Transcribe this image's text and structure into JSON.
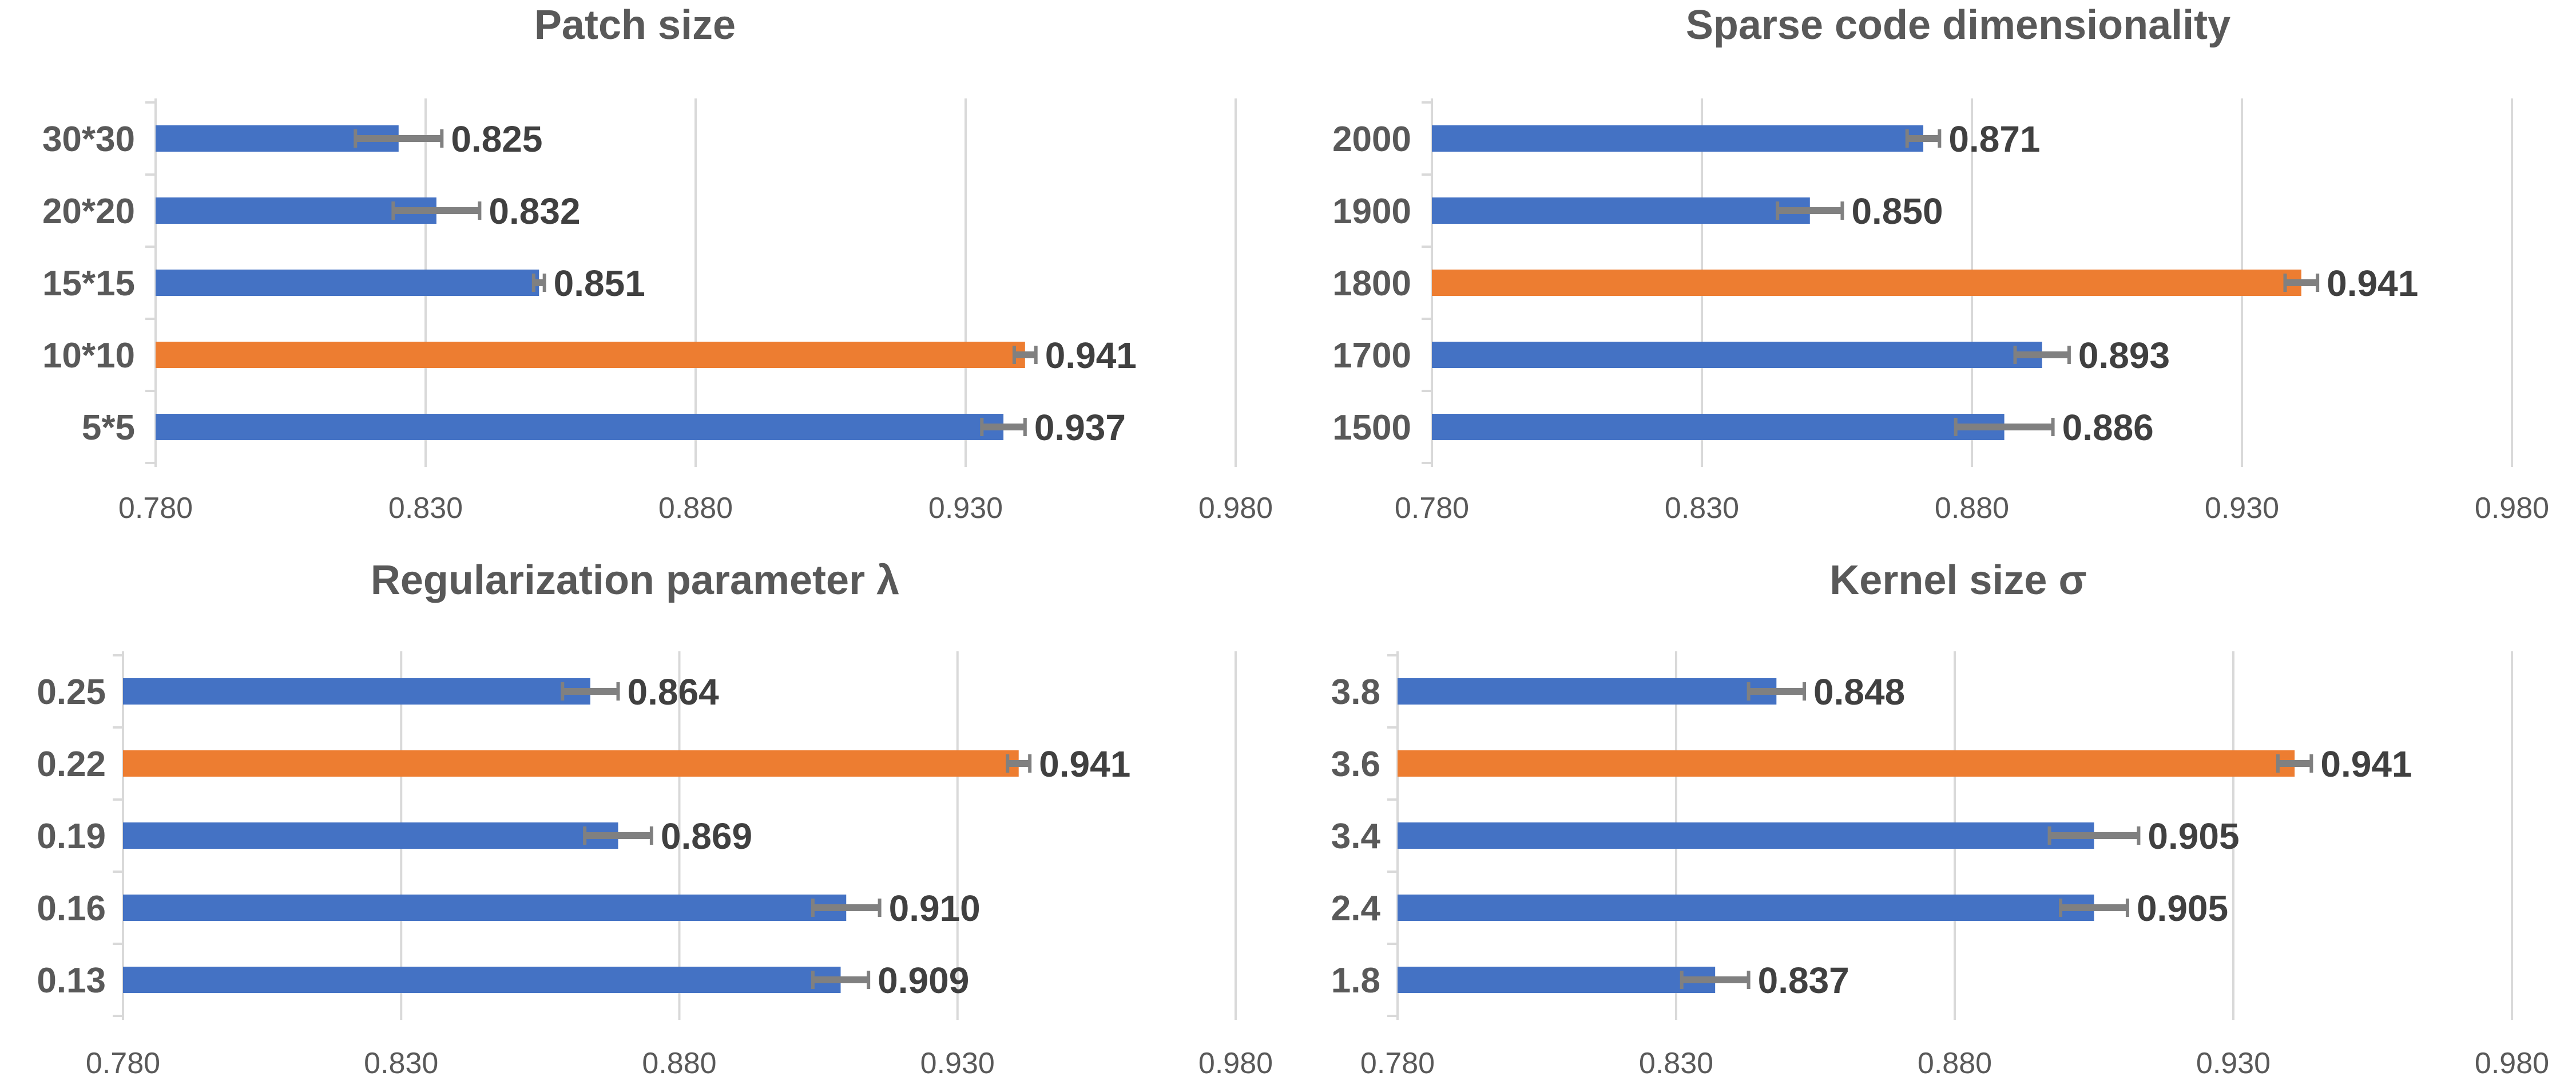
{
  "colors": {
    "bar": "#4472c4",
    "highlight": "#ed7d31",
    "errorbar": "#808080",
    "grid": "#d9d9d9",
    "text": "#595959",
    "label": "#404040"
  },
  "chart_data": [
    {
      "type": "bar",
      "orientation": "horizontal",
      "title": "Patch size",
      "categories": [
        "30*30",
        "20*20",
        "15*15",
        "10*10",
        "5*5"
      ],
      "values": [
        0.825,
        0.832,
        0.851,
        0.941,
        0.937
      ],
      "labels": [
        "0.825",
        "0.832",
        "0.851",
        "0.941",
        "0.937"
      ],
      "errors": [
        0.008,
        0.008,
        0.001,
        0.002,
        0.004
      ],
      "highlight_index": 3,
      "xlim": [
        0.78,
        0.98
      ],
      "xticks": [
        "0.780",
        "0.830",
        "0.880",
        "0.930",
        "0.980"
      ]
    },
    {
      "type": "bar",
      "orientation": "horizontal",
      "title": "Sparse code dimensionality",
      "categories": [
        "2000",
        "1900",
        "1800",
        "1700",
        "1500"
      ],
      "values": [
        0.871,
        0.85,
        0.941,
        0.893,
        0.886
      ],
      "labels": [
        "0.871",
        "0.850",
        "0.941",
        "0.893",
        "0.886"
      ],
      "errors": [
        0.003,
        0.006,
        0.003,
        0.005,
        0.009
      ],
      "highlight_index": 2,
      "xlim": [
        0.78,
        0.98
      ],
      "xticks": [
        "0.780",
        "0.830",
        "0.880",
        "0.930",
        "0.980"
      ]
    },
    {
      "type": "bar",
      "orientation": "horizontal",
      "title": "Regularization parameter λ",
      "categories": [
        "0.25",
        "0.22",
        "0.19",
        "0.16",
        "0.13"
      ],
      "values": [
        0.864,
        0.941,
        0.869,
        0.91,
        0.909
      ],
      "labels": [
        "0.864",
        "0.941",
        "0.869",
        "0.910",
        "0.909"
      ],
      "errors": [
        0.005,
        0.002,
        0.006,
        0.006,
        0.005
      ],
      "highlight_index": 1,
      "xlim": [
        0.78,
        0.98
      ],
      "xticks": [
        "0.780",
        "0.830",
        "0.880",
        "0.930",
        "0.980"
      ]
    },
    {
      "type": "bar",
      "orientation": "horizontal",
      "title": "Kernel size σ",
      "categories": [
        "3.8",
        "3.6",
        "3.4",
        "2.4",
        "1.8"
      ],
      "values": [
        0.848,
        0.941,
        0.905,
        0.905,
        0.837
      ],
      "labels": [
        "0.848",
        "0.941",
        "0.905",
        "0.905",
        "0.837"
      ],
      "errors": [
        0.005,
        0.003,
        0.008,
        0.006,
        0.006
      ],
      "highlight_index": 1,
      "xlim": [
        0.78,
        0.98
      ],
      "xticks": [
        "0.780",
        "0.830",
        "0.880",
        "0.930",
        "0.980"
      ]
    }
  ]
}
